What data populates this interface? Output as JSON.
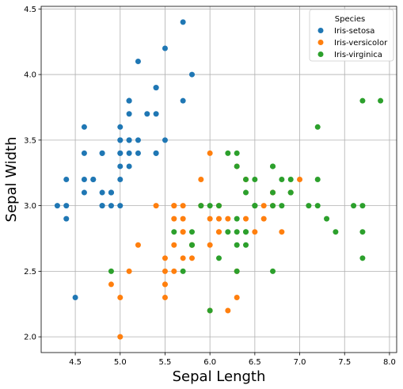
{
  "chart_data": {
    "type": "scatter",
    "title": "",
    "xlabel": "Sepal Length",
    "ylabel": "Sepal Width",
    "xlim": [
      4.12,
      8.08
    ],
    "ylim": [
      1.88,
      4.52
    ],
    "x_ticks": [
      4.5,
      5.0,
      5.5,
      6.0,
      6.5,
      7.0,
      7.5,
      8.0
    ],
    "y_ticks": [
      2.0,
      2.5,
      3.0,
      3.5,
      4.0,
      4.5
    ],
    "grid": true,
    "legend": {
      "title": "Species",
      "placement": "top-right"
    },
    "series": [
      {
        "name": "Iris-setosa",
        "color": "#1f77b4",
        "points": [
          [
            5.1,
            3.5
          ],
          [
            4.9,
            3.0
          ],
          [
            4.7,
            3.2
          ],
          [
            4.6,
            3.1
          ],
          [
            5.0,
            3.6
          ],
          [
            5.4,
            3.9
          ],
          [
            4.6,
            3.4
          ],
          [
            5.0,
            3.4
          ],
          [
            4.4,
            2.9
          ],
          [
            4.9,
            3.1
          ],
          [
            5.4,
            3.7
          ],
          [
            4.8,
            3.4
          ],
          [
            4.8,
            3.0
          ],
          [
            4.3,
            3.0
          ],
          [
            5.8,
            4.0
          ],
          [
            5.7,
            4.4
          ],
          [
            5.4,
            3.9
          ],
          [
            5.1,
            3.5
          ],
          [
            5.7,
            3.8
          ],
          [
            5.1,
            3.8
          ],
          [
            5.4,
            3.4
          ],
          [
            5.1,
            3.7
          ],
          [
            4.6,
            3.6
          ],
          [
            5.1,
            3.3
          ],
          [
            4.8,
            3.4
          ],
          [
            5.0,
            3.0
          ],
          [
            5.0,
            3.4
          ],
          [
            5.2,
            3.5
          ],
          [
            5.2,
            3.4
          ],
          [
            4.7,
            3.2
          ],
          [
            4.8,
            3.1
          ],
          [
            5.4,
            3.4
          ],
          [
            5.2,
            4.1
          ],
          [
            5.5,
            4.2
          ],
          [
            4.9,
            3.1
          ],
          [
            5.0,
            3.2
          ],
          [
            5.5,
            3.5
          ],
          [
            4.9,
            3.1
          ],
          [
            4.4,
            3.0
          ],
          [
            5.1,
            3.4
          ],
          [
            5.0,
            3.5
          ],
          [
            4.5,
            2.3
          ],
          [
            4.4,
            3.2
          ],
          [
            5.0,
            3.5
          ],
          [
            5.1,
            3.8
          ],
          [
            4.8,
            3.0
          ],
          [
            5.1,
            3.8
          ],
          [
            4.6,
            3.2
          ],
          [
            5.3,
            3.7
          ],
          [
            5.0,
            3.3
          ]
        ]
      },
      {
        "name": "Iris-versicolor",
        "color": "#ff7f0e",
        "points": [
          [
            7.0,
            3.2
          ],
          [
            6.4,
            3.2
          ],
          [
            6.9,
            3.1
          ],
          [
            5.5,
            2.3
          ],
          [
            6.5,
            2.8
          ],
          [
            5.7,
            2.8
          ],
          [
            6.3,
            3.3
          ],
          [
            4.9,
            2.4
          ],
          [
            6.6,
            2.9
          ],
          [
            5.2,
            2.7
          ],
          [
            5.0,
            2.0
          ],
          [
            5.9,
            3.0
          ],
          [
            6.0,
            2.2
          ],
          [
            6.1,
            2.9
          ],
          [
            5.6,
            2.9
          ],
          [
            6.7,
            3.1
          ],
          [
            5.6,
            3.0
          ],
          [
            5.8,
            2.7
          ],
          [
            6.2,
            2.2
          ],
          [
            5.6,
            2.5
          ],
          [
            5.9,
            3.2
          ],
          [
            6.1,
            2.8
          ],
          [
            6.3,
            2.5
          ],
          [
            6.1,
            2.8
          ],
          [
            6.4,
            2.9
          ],
          [
            6.6,
            3.0
          ],
          [
            6.8,
            2.8
          ],
          [
            6.7,
            3.0
          ],
          [
            6.0,
            2.9
          ],
          [
            5.7,
            2.6
          ],
          [
            5.5,
            2.4
          ],
          [
            5.5,
            2.4
          ],
          [
            5.8,
            2.7
          ],
          [
            6.0,
            2.7
          ],
          [
            5.4,
            3.0
          ],
          [
            6.0,
            3.4
          ],
          [
            6.7,
            3.1
          ],
          [
            6.3,
            2.3
          ],
          [
            5.6,
            3.0
          ],
          [
            5.5,
            2.5
          ],
          [
            5.5,
            2.6
          ],
          [
            6.1,
            3.0
          ],
          [
            5.8,
            2.6
          ],
          [
            5.0,
            2.3
          ],
          [
            5.6,
            2.7
          ],
          [
            5.7,
            3.0
          ],
          [
            5.7,
            2.9
          ],
          [
            6.2,
            2.9
          ],
          [
            5.1,
            2.5
          ],
          [
            5.7,
            2.8
          ]
        ]
      },
      {
        "name": "Iris-virginica",
        "color": "#2ca02c",
        "points": [
          [
            6.3,
            3.3
          ],
          [
            5.8,
            2.7
          ],
          [
            7.1,
            3.0
          ],
          [
            6.3,
            2.9
          ],
          [
            6.5,
            3.0
          ],
          [
            7.6,
            3.0
          ],
          [
            4.9,
            2.5
          ],
          [
            7.3,
            2.9
          ],
          [
            6.7,
            2.5
          ],
          [
            7.2,
            3.6
          ],
          [
            6.5,
            3.2
          ],
          [
            6.4,
            2.7
          ],
          [
            6.8,
            3.0
          ],
          [
            5.7,
            2.5
          ],
          [
            5.8,
            2.8
          ],
          [
            6.4,
            3.2
          ],
          [
            6.5,
            3.0
          ],
          [
            7.7,
            3.8
          ],
          [
            7.7,
            2.6
          ],
          [
            6.0,
            2.2
          ],
          [
            6.9,
            3.2
          ],
          [
            5.6,
            2.8
          ],
          [
            7.7,
            2.8
          ],
          [
            6.3,
            2.7
          ],
          [
            6.7,
            3.3
          ],
          [
            7.2,
            3.2
          ],
          [
            6.2,
            2.8
          ],
          [
            6.1,
            3.0
          ],
          [
            6.4,
            2.8
          ],
          [
            7.2,
            3.0
          ],
          [
            7.4,
            2.8
          ],
          [
            7.9,
            3.8
          ],
          [
            6.4,
            2.8
          ],
          [
            6.3,
            2.8
          ],
          [
            6.1,
            2.6
          ],
          [
            7.7,
            3.0
          ],
          [
            6.3,
            3.4
          ],
          [
            6.4,
            3.1
          ],
          [
            6.0,
            3.0
          ],
          [
            6.9,
            3.1
          ],
          [
            6.7,
            3.1
          ],
          [
            6.9,
            3.1
          ],
          [
            5.8,
            2.7
          ],
          [
            6.8,
            3.2
          ],
          [
            6.7,
            3.3
          ],
          [
            6.7,
            3.0
          ],
          [
            6.3,
            2.5
          ],
          [
            6.5,
            3.0
          ],
          [
            6.2,
            3.4
          ],
          [
            5.9,
            3.0
          ]
        ]
      }
    ]
  }
}
